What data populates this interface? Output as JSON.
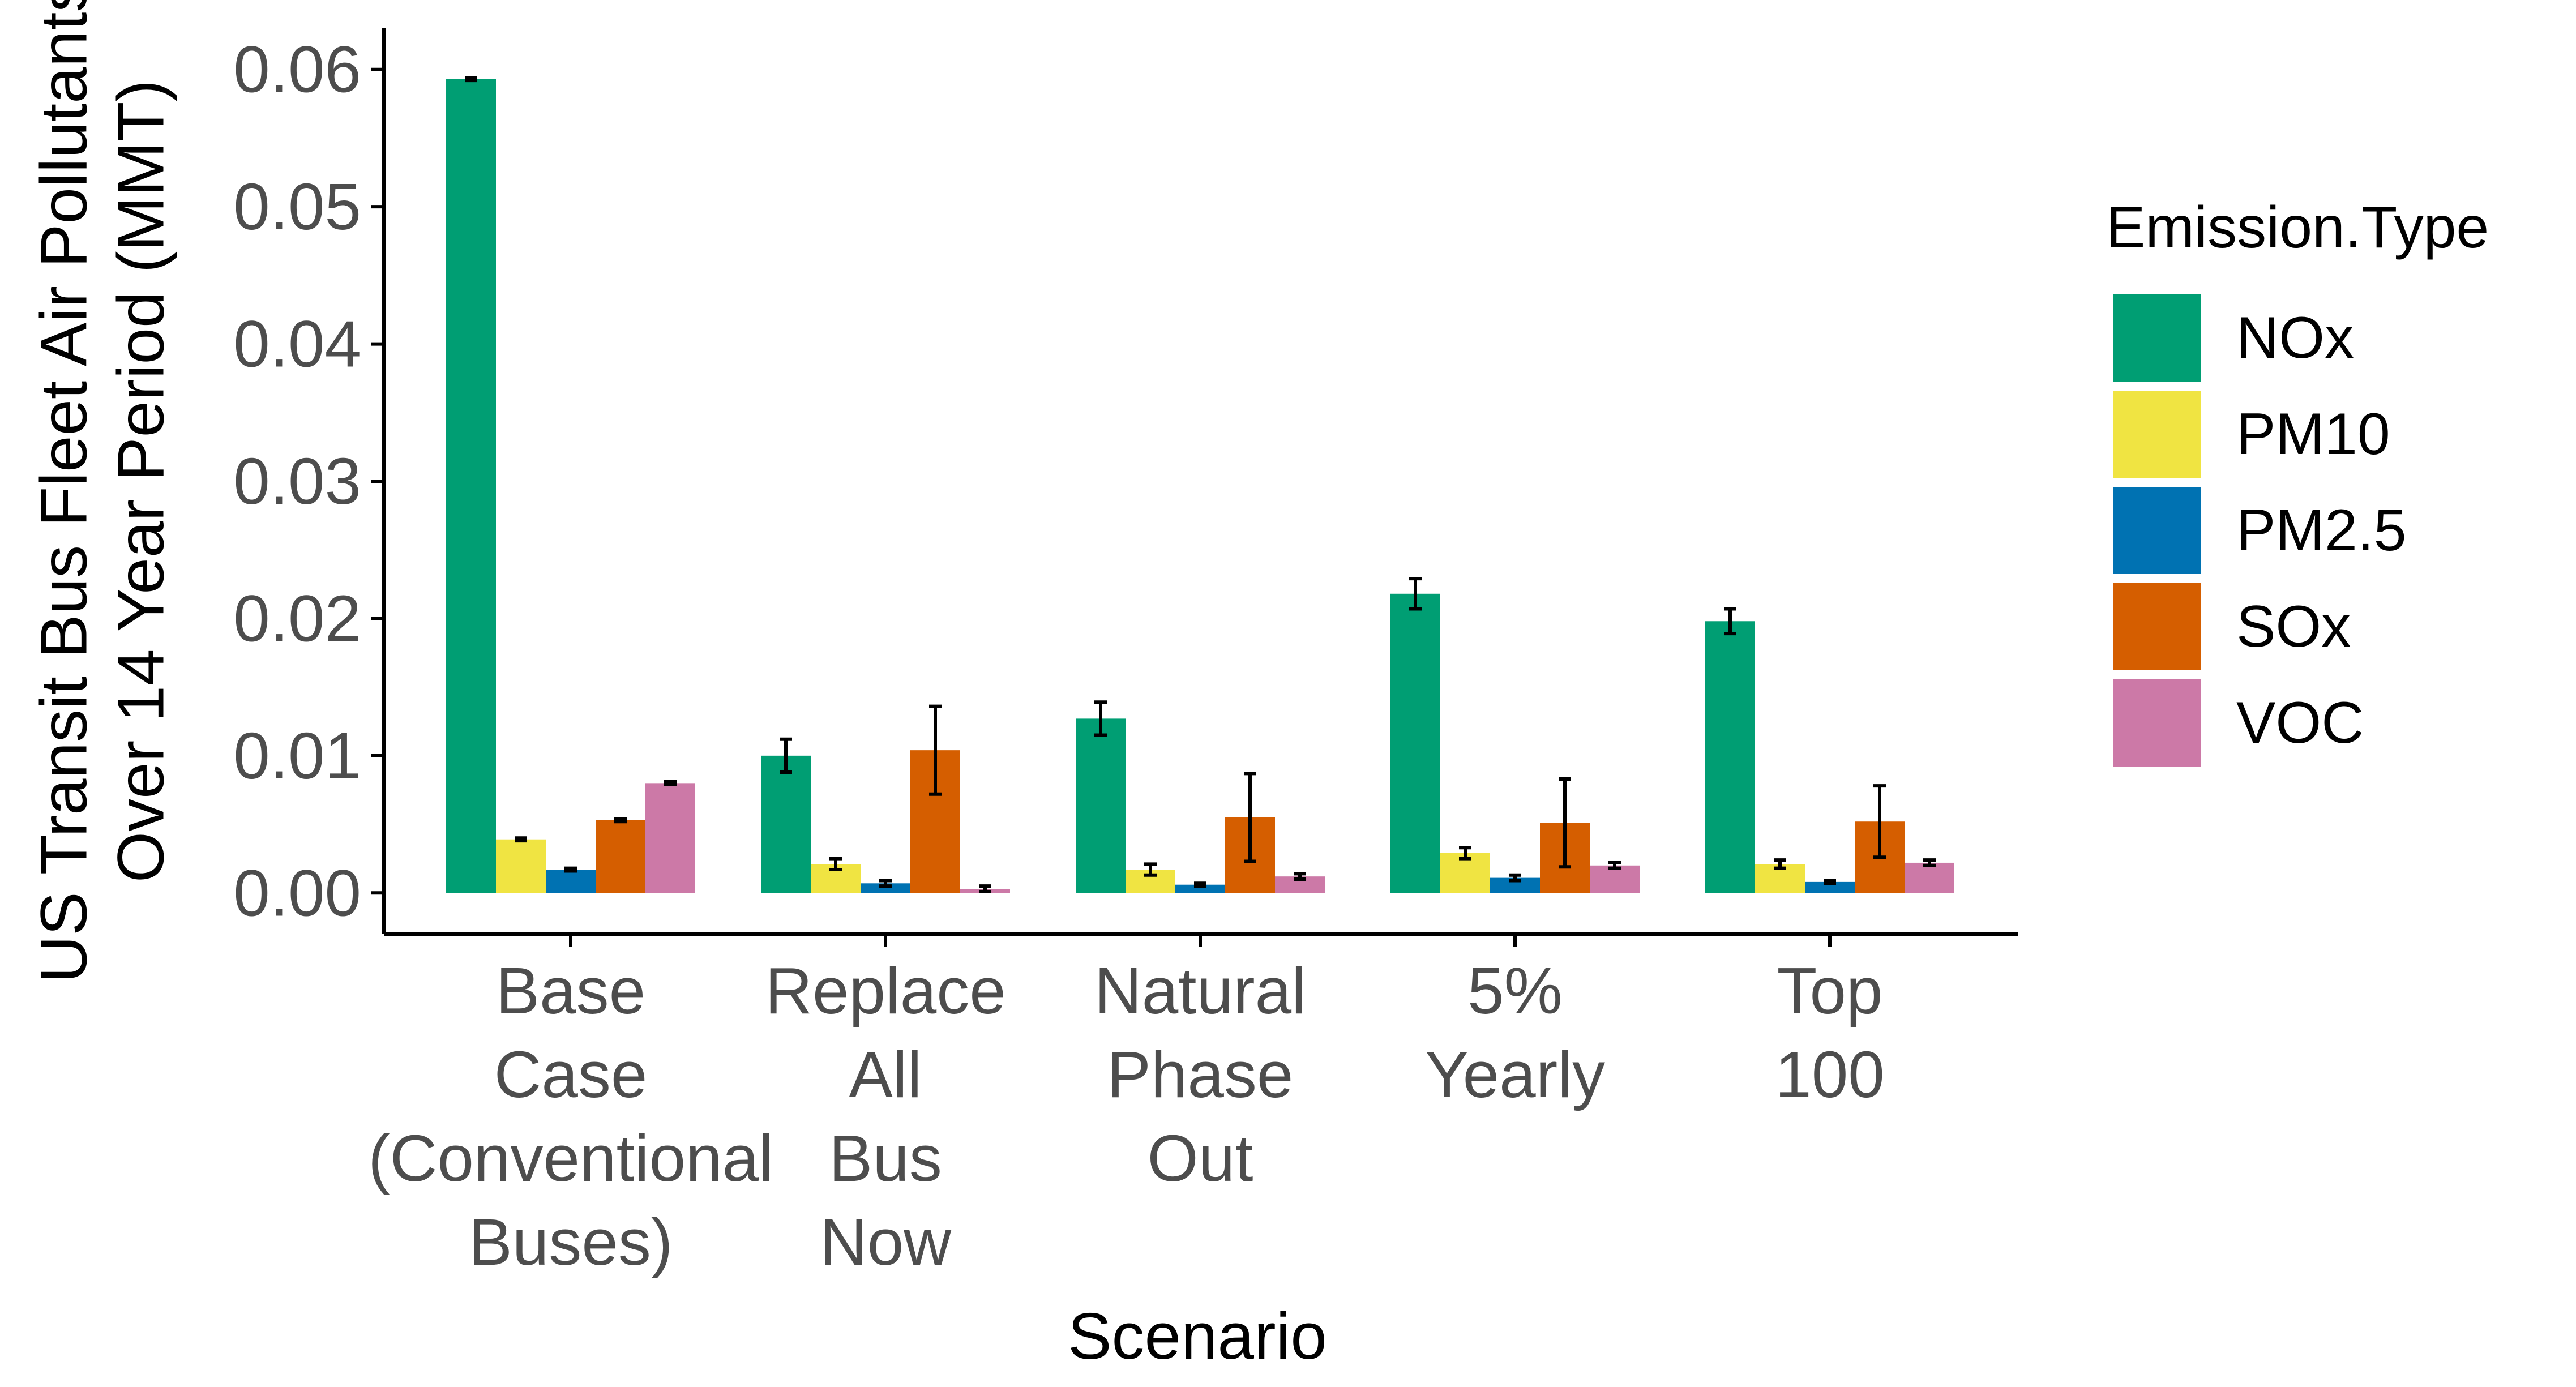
{
  "chart_data": {
    "type": "bar",
    "xlabel": "Scenario",
    "ylabel_lines": [
      "US Transit Bus Fleet Air Pollutants",
      "Over 14 Year Period (MMT)"
    ],
    "categories": [
      [
        "Base",
        "Case",
        "(Conventional",
        "Buses)"
      ],
      [
        "Replace",
        "All",
        "Bus",
        "Now"
      ],
      [
        "Natural",
        "Phase",
        "Out"
      ],
      [
        "5%",
        "Yearly"
      ],
      [
        "Top",
        "100"
      ]
    ],
    "ylim": [
      -0.003,
      0.063
    ],
    "yticks": [
      0.0,
      0.01,
      0.02,
      0.03,
      0.04,
      0.05,
      0.06
    ],
    "ytick_labels": [
      "0.00",
      "0.01",
      "0.02",
      "0.03",
      "0.04",
      "0.05",
      "0.06"
    ],
    "grid": false,
    "legend": {
      "title": "Emission.Type",
      "placement": "right"
    },
    "series": [
      {
        "name": "NOx",
        "color": "#009E73",
        "values": [
          0.0593,
          0.01,
          0.0127,
          0.0218,
          0.0198
        ],
        "err": [
          0.0001,
          0.0012,
          0.0012,
          0.0011,
          0.0009
        ]
      },
      {
        "name": "PM10",
        "color": "#F0E442",
        "values": [
          0.0039,
          0.0021,
          0.0017,
          0.0029,
          0.0021
        ],
        "err": [
          0.0001,
          0.0004,
          0.0004,
          0.0004,
          0.0003
        ]
      },
      {
        "name": "PM2.5",
        "color": "#0072B2",
        "values": [
          0.0017,
          0.0007,
          0.0006,
          0.0011,
          0.0008
        ],
        "err": [
          0.0001,
          0.0002,
          0.0001,
          0.0002,
          0.0001
        ]
      },
      {
        "name": "SOx",
        "color": "#D55E00",
        "values": [
          0.0053,
          0.0104,
          0.0055,
          0.0051,
          0.0052
        ],
        "err": [
          0.0001,
          0.0032,
          0.0032,
          0.0032,
          0.0026
        ]
      },
      {
        "name": "VOC",
        "color": "#CC79A7",
        "values": [
          0.008,
          0.0003,
          0.0012,
          0.002,
          0.0022
        ],
        "err": [
          0.0001,
          0.0002,
          0.0002,
          0.0002,
          0.0002
        ]
      }
    ]
  }
}
